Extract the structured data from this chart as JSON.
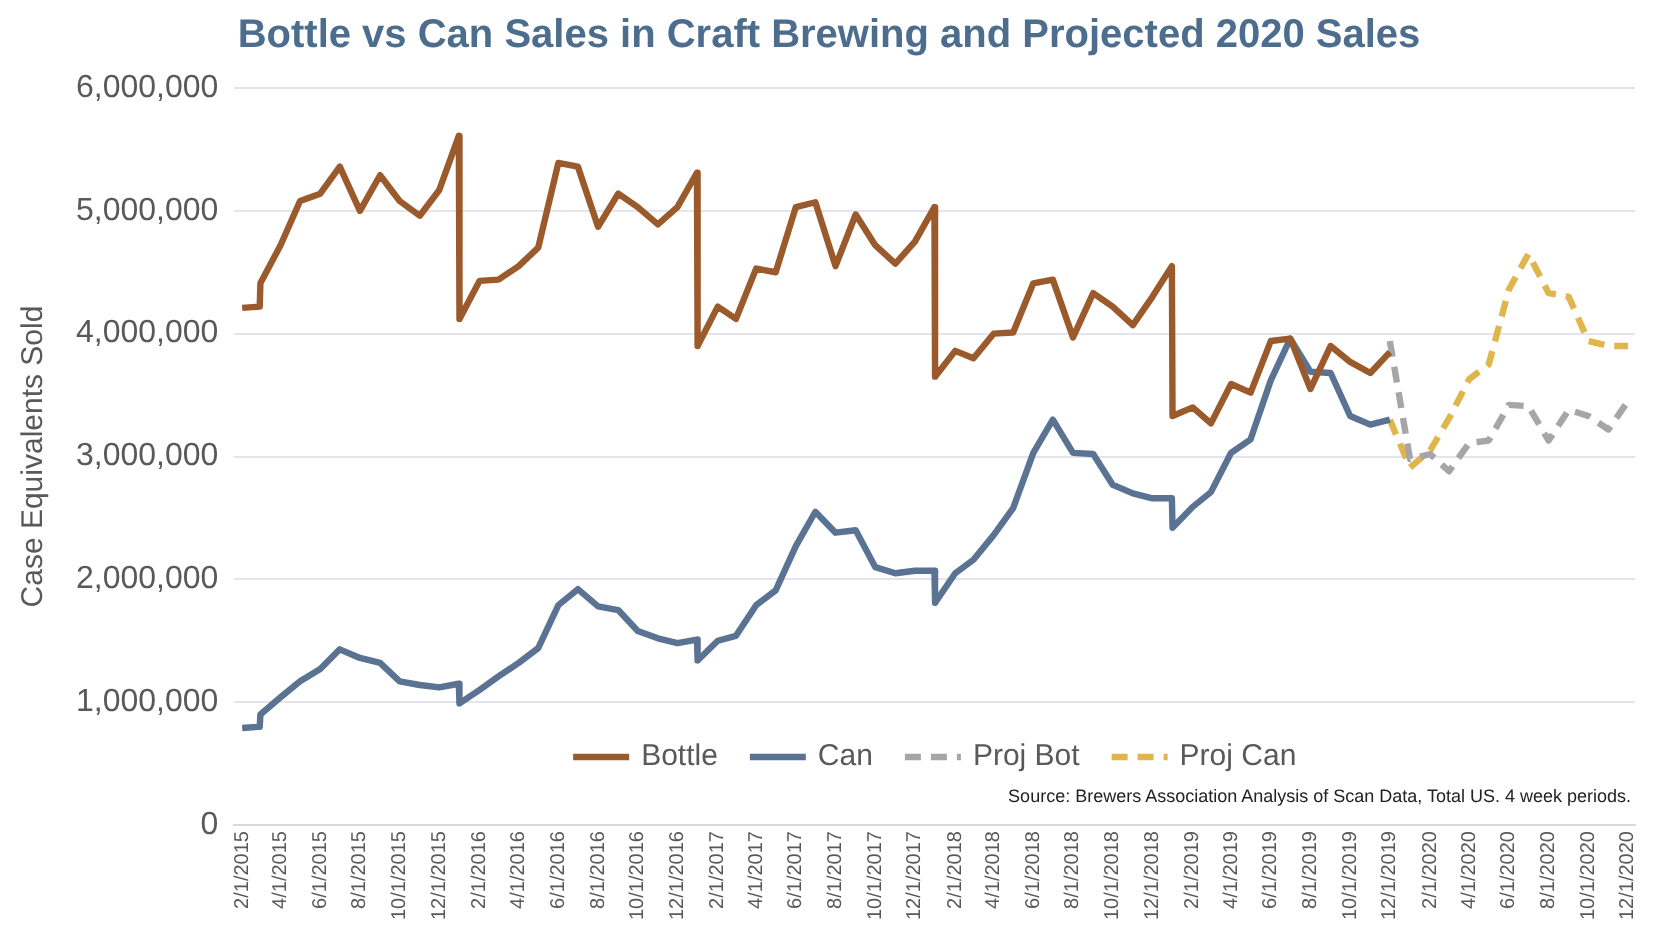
{
  "chart_data": {
    "type": "line",
    "title": "Bottle vs Can Sales in Craft Brewing and Projected 2020 Sales",
    "ylabel": "Case Equivalents Sold",
    "x": [
      "2015-02-01",
      "2015-02-28",
      "2015-03-01",
      "2015-04-01",
      "2015-05-01",
      "2015-06-01",
      "2015-07-01",
      "2015-08-01",
      "2015-09-01",
      "2015-10-01",
      "2015-11-01",
      "2015-12-01",
      "2015-12-31",
      "2016-01-01",
      "2016-02-01",
      "2016-03-01",
      "2016-04-01",
      "2016-05-01",
      "2016-06-01",
      "2016-07-01",
      "2016-08-01",
      "2016-09-01",
      "2016-10-01",
      "2016-11-01",
      "2016-12-01",
      "2016-12-31",
      "2017-01-01",
      "2017-02-01",
      "2017-03-01",
      "2017-04-01",
      "2017-05-01",
      "2017-06-01",
      "2017-07-01",
      "2017-08-01",
      "2017-09-01",
      "2017-10-01",
      "2017-11-01",
      "2017-12-01",
      "2017-12-31",
      "2018-01-01",
      "2018-02-01",
      "2018-03-01",
      "2018-04-01",
      "2018-05-01",
      "2018-06-01",
      "2018-07-01",
      "2018-08-01",
      "2018-09-01",
      "2018-10-01",
      "2018-11-01",
      "2018-12-01",
      "2018-12-31",
      "2019-01-01",
      "2019-02-01",
      "2019-03-01",
      "2019-04-01",
      "2019-05-01",
      "2019-06-01",
      "2019-07-01",
      "2019-08-01",
      "2019-09-01",
      "2019-10-01",
      "2019-11-01",
      "2019-12-01"
    ],
    "series": [
      {
        "name": "Bottle",
        "color": "#9b5a2c",
        "line_style": "solid",
        "values": [
          4210000,
          4220000,
          4410000,
          4720000,
          5080000,
          5140000,
          5360000,
          5000000,
          5290000,
          5080000,
          4960000,
          5170000,
          5610000,
          4120000,
          4430000,
          4440000,
          4550000,
          4700000,
          5390000,
          5360000,
          4870000,
          5140000,
          5030000,
          4890000,
          5030000,
          5310000,
          3900000,
          4220000,
          4120000,
          4530000,
          4500000,
          5030000,
          5070000,
          4550000,
          4970000,
          4720000,
          4570000,
          4750000,
          5030000,
          3650000,
          3860000,
          3800000,
          4000000,
          4010000,
          4410000,
          4440000,
          3970000,
          4330000,
          4220000,
          4070000,
          4300000,
          4550000,
          3330000,
          3400000,
          3270000,
          3590000,
          3520000,
          3940000,
          3960000,
          3550000,
          3900000,
          3770000,
          3680000,
          3850000
        ]
      },
      {
        "name": "Can",
        "color": "#5b7392",
        "line_style": "solid",
        "values": [
          790000,
          800000,
          900000,
          1040000,
          1170000,
          1270000,
          1430000,
          1360000,
          1320000,
          1170000,
          1140000,
          1120000,
          1150000,
          990000,
          1100000,
          1210000,
          1320000,
          1440000,
          1790000,
          1920000,
          1780000,
          1750000,
          1580000,
          1520000,
          1480000,
          1510000,
          1340000,
          1500000,
          1540000,
          1790000,
          1910000,
          2270000,
          2550000,
          2380000,
          2400000,
          2100000,
          2050000,
          2070000,
          2070000,
          1810000,
          2050000,
          2160000,
          2360000,
          2580000,
          3030000,
          3300000,
          3030000,
          3020000,
          2770000,
          2700000,
          2660000,
          2660000,
          2420000,
          2590000,
          2710000,
          3030000,
          3140000,
          3620000,
          3960000,
          3690000,
          3680000,
          3330000,
          3260000,
          3300000
        ]
      },
      {
        "name": "Proj Bot",
        "color": "#a6a6a6",
        "line_style": "dashed",
        "x": [
          "2019-12-01",
          "2020-01-01",
          "2020-02-01",
          "2020-03-01",
          "2020-04-01",
          "2020-05-01",
          "2020-06-01",
          "2020-07-01",
          "2020-08-01",
          "2020-09-01",
          "2020-10-01",
          "2020-11-01",
          "2020-12-01"
        ],
        "values": [
          3940000,
          2980000,
          3020000,
          2880000,
          3110000,
          3130000,
          3420000,
          3410000,
          3130000,
          3380000,
          3330000,
          3220000,
          3450000
        ]
      },
      {
        "name": "Proj Can",
        "color": "#e0b64c",
        "line_style": "dashed",
        "x": [
          "2019-12-01",
          "2020-01-01",
          "2020-02-01",
          "2020-03-01",
          "2020-04-01",
          "2020-05-01",
          "2020-06-01",
          "2020-07-01",
          "2020-08-01",
          "2020-09-01",
          "2020-10-01",
          "2020-11-01",
          "2020-12-01"
        ],
        "values": [
          3300000,
          2910000,
          3050000,
          3310000,
          3630000,
          3750000,
          4360000,
          4650000,
          4330000,
          4300000,
          3940000,
          3900000,
          3900000
        ]
      }
    ],
    "xlim": [
      "2015-01-20",
      "2020-12-12"
    ],
    "xticks": [
      {
        "value": "2015-02-01",
        "label": "2/1/2015"
      },
      {
        "value": "2015-04-01",
        "label": "4/1/2015"
      },
      {
        "value": "2015-06-01",
        "label": "6/1/2015"
      },
      {
        "value": "2015-08-01",
        "label": "8/1/2015"
      },
      {
        "value": "2015-10-01",
        "label": "10/1/2015"
      },
      {
        "value": "2015-12-01",
        "label": "12/1/2015"
      },
      {
        "value": "2016-02-01",
        "label": "2/1/2016"
      },
      {
        "value": "2016-04-01",
        "label": "4/1/2016"
      },
      {
        "value": "2016-06-01",
        "label": "6/1/2016"
      },
      {
        "value": "2016-08-01",
        "label": "8/1/2016"
      },
      {
        "value": "2016-10-01",
        "label": "10/1/2016"
      },
      {
        "value": "2016-12-01",
        "label": "12/1/2016"
      },
      {
        "value": "2017-02-01",
        "label": "2/1/2017"
      },
      {
        "value": "2017-04-01",
        "label": "4/1/2017"
      },
      {
        "value": "2017-06-01",
        "label": "6/1/2017"
      },
      {
        "value": "2017-08-01",
        "label": "8/1/2017"
      },
      {
        "value": "2017-10-01",
        "label": "10/1/2017"
      },
      {
        "value": "2017-12-01",
        "label": "12/1/2017"
      },
      {
        "value": "2018-02-01",
        "label": "2/1/2018"
      },
      {
        "value": "2018-04-01",
        "label": "4/1/2018"
      },
      {
        "value": "2018-06-01",
        "label": "6/1/2018"
      },
      {
        "value": "2018-08-01",
        "label": "8/1/2018"
      },
      {
        "value": "2018-10-01",
        "label": "10/1/2018"
      },
      {
        "value": "2018-12-01",
        "label": "12/1/2018"
      },
      {
        "value": "2019-02-01",
        "label": "2/1/2019"
      },
      {
        "value": "2019-04-01",
        "label": "4/1/2019"
      },
      {
        "value": "2019-06-01",
        "label": "6/1/2019"
      },
      {
        "value": "2019-08-01",
        "label": "8/1/2019"
      },
      {
        "value": "2019-10-01",
        "label": "10/1/2019"
      },
      {
        "value": "2019-12-01",
        "label": "12/1/2019"
      },
      {
        "value": "2020-02-01",
        "label": "2/1/2020"
      },
      {
        "value": "2020-04-01",
        "label": "4/1/2020"
      },
      {
        "value": "2020-06-01",
        "label": "6/1/2020"
      },
      {
        "value": "2020-08-01",
        "label": "8/1/2020"
      },
      {
        "value": "2020-10-01",
        "label": "10/1/2020"
      },
      {
        "value": "2020-12-01",
        "label": "12/1/2020"
      }
    ],
    "ylim": [
      0,
      6000000
    ],
    "yticks": [
      {
        "value": 0,
        "label": "0"
      },
      {
        "value": 1000000,
        "label": "1,000,000"
      },
      {
        "value": 2000000,
        "label": "2,000,000"
      },
      {
        "value": 3000000,
        "label": "3,000,000"
      },
      {
        "value": 4000000,
        "label": "4,000,000"
      },
      {
        "value": 5000000,
        "label": "5,000,000"
      },
      {
        "value": 6000000,
        "label": "6,000,000"
      }
    ],
    "grid": "y",
    "legend": "bottom",
    "marker": "none",
    "annotations": [
      "Source: Brewers Association Analysis of Scan Data, Total US. 4 week periods."
    ]
  }
}
